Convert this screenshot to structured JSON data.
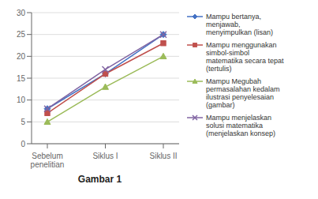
{
  "chart_data": {
    "type": "line",
    "title": "Gambar 1",
    "categories": [
      "Sebelum\npenelitian",
      "Siklus I",
      "Siklus II"
    ],
    "series": [
      {
        "name": "Mampu bertanya,\nmenjawab,\nmenyimpulkan (lisan)",
        "color": "#4472C4",
        "marker": "diamond",
        "values": [
          8,
          16,
          25
        ]
      },
      {
        "name": "Mampu menggunakan\nsimbol-simbol\nmatematika secara tepat\n(tertulis)",
        "color": "#C0504D",
        "marker": "square",
        "values": [
          7,
          16,
          23
        ]
      },
      {
        "name": "Mampu Megubah\npermasalahan kedalam\nilustrasi penyelesaian\n(gambar)",
        "color": "#9BBB59",
        "marker": "triangle",
        "values": [
          5,
          13,
          20
        ]
      },
      {
        "name": "Mampu menjelaskan\nsolusi matematika\n(menjelaskan konsep)",
        "color": "#8064A2",
        "marker": "x",
        "values": [
          8,
          17,
          25
        ]
      }
    ],
    "ylim": [
      0,
      30
    ],
    "yticks": [
      0,
      5,
      10,
      15,
      20,
      25,
      30
    ],
    "grid": true,
    "legend": "right"
  }
}
